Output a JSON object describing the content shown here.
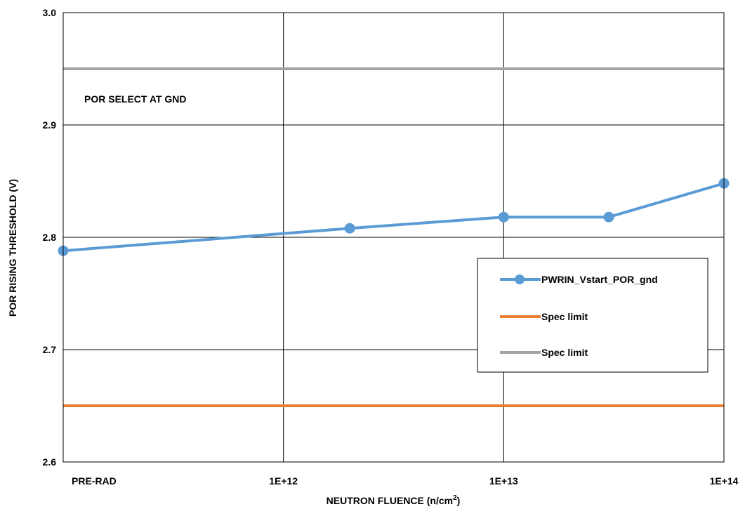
{
  "chart_data": {
    "type": "line",
    "xlabel": "NEUTRON FLUENCE (n/cm",
    "xlabel_sup": "2",
    "xlabel_end": ")",
    "ylabel": "POR RISING THRESHOLD (V)",
    "x_scale": "log",
    "xlim": [
      100000000000,
      100000000000000
    ],
    "ylim": [
      2.6,
      3.0
    ],
    "grid": true,
    "x_ticks": [
      {
        "value": 100000000000,
        "label": "PRE-RAD"
      },
      {
        "value": 1000000000000,
        "label": "1E+12"
      },
      {
        "value": 10000000000000,
        "label": "1E+13"
      },
      {
        "value": 100000000000000,
        "label": "1E+14"
      }
    ],
    "y_ticks": [
      {
        "value": 2.6,
        "label": "2.6"
      },
      {
        "value": 2.7,
        "label": "2.7"
      },
      {
        "value": 2.8,
        "label": "2.8"
      },
      {
        "value": 2.9,
        "label": "2.9"
      },
      {
        "value": 3.0,
        "label": "3.0"
      }
    ],
    "annotation": "POR SELECT AT GND",
    "legend_position": "right",
    "series": [
      {
        "name": "PWRIN_Vstart_POR_gnd",
        "color": "#5b9bd5",
        "marker": true,
        "x": [
          100000000000,
          2000000000000,
          10000000000000,
          30000000000000,
          100000000000000
        ],
        "y": [
          2.788,
          2.808,
          2.818,
          2.818,
          2.848
        ]
      },
      {
        "name": "Spec limit",
        "color": "#ed7d31",
        "marker": false,
        "x": [
          100000000000,
          100000000000000
        ],
        "y": [
          2.65,
          2.65
        ]
      },
      {
        "name": "Spec limit",
        "color": "#a5a5a5",
        "marker": false,
        "x": [
          100000000000,
          100000000000000
        ],
        "y": [
          2.95,
          2.95
        ]
      }
    ]
  }
}
